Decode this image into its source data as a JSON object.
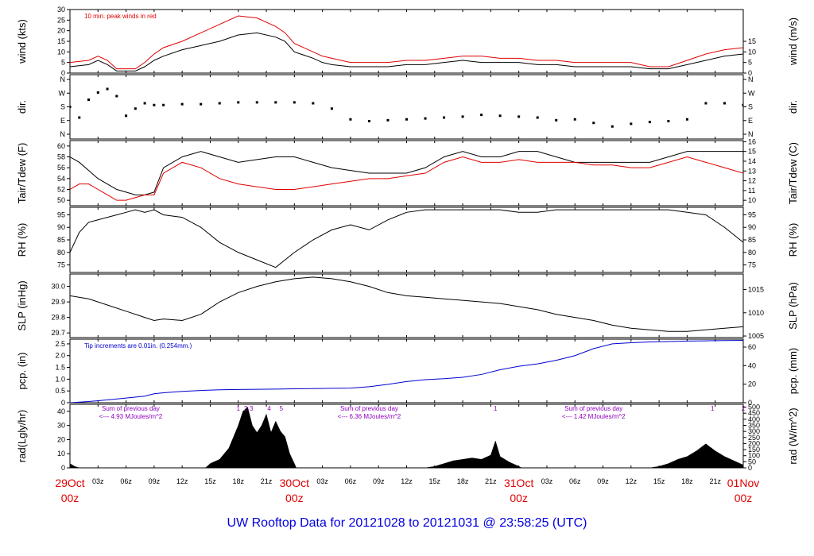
{
  "title": "UW Rooftop Data for 20121028  to  20121031 @ 23:58:25  (UTC)",
  "colors": {
    "wind": "#000000",
    "gust": "#e00000",
    "dewpoint": "#e00000",
    "precip": "#0000d0",
    "annotation": "#9000c0",
    "date": "#e00000",
    "title": "#0000e0"
  },
  "x_axis": {
    "ticks": [
      "29Oct 00z",
      "03z",
      "06z",
      "09z",
      "12z",
      "15z",
      "18z",
      "21z",
      "30Oct 00z",
      "03z",
      "06z",
      "09z",
      "12z",
      "15z",
      "18z",
      "21z",
      "31Oct 00z",
      "03z",
      "06z",
      "09z",
      "12z",
      "15z",
      "18z",
      "21z",
      "01Nov 00z"
    ],
    "hour_labels": [
      "03z",
      "06z",
      "09z",
      "12z",
      "15z",
      "18z",
      "21z",
      "03z",
      "06z",
      "09z",
      "12z",
      "15z",
      "18z",
      "21z",
      "03z",
      "06z",
      "09z",
      "12z",
      "15z",
      "18z",
      "21z"
    ],
    "day_labels": [
      {
        "date": "29Oct",
        "hour": "00z"
      },
      {
        "date": "30Oct",
        "hour": "00z"
      },
      {
        "date": "31Oct",
        "hour": "00z"
      },
      {
        "date": "01Nov",
        "hour": "00z"
      }
    ]
  },
  "chart_data": [
    {
      "type": "line",
      "ylabel_left": "wind (kts)",
      "ylabel_right": "wind (m/s)",
      "note": "10 min. peak winds in red",
      "ylim": [
        0,
        30
      ],
      "y_ticks_left": [
        0,
        5,
        10,
        15,
        20,
        25,
        30
      ],
      "y_ticks_right_values": [
        0,
        5,
        10,
        15
      ],
      "y_ticks_right_labels": [
        "0",
        "5",
        "10",
        "15"
      ],
      "right_scale": 1.944,
      "series": [
        {
          "name": "wind speed",
          "color": "#000000",
          "x_hours": [
            0,
            2,
            3,
            4,
            5,
            6,
            7,
            8,
            9,
            10,
            12,
            14,
            16,
            18,
            20,
            22,
            23,
            24,
            26,
            27,
            28,
            30,
            32,
            34,
            36,
            38,
            40,
            42,
            44,
            46,
            48,
            50,
            52,
            54,
            56,
            58,
            60,
            62,
            64,
            66,
            68,
            70,
            72
          ],
          "y": [
            3,
            4,
            6,
            4,
            1,
            1,
            1,
            3,
            6,
            8,
            11,
            13,
            15,
            18,
            19,
            17,
            15,
            10,
            7,
            5,
            4,
            3,
            3,
            3,
            4,
            4,
            5,
            6,
            5,
            5,
            5,
            4,
            4,
            3,
            3,
            3,
            3,
            2,
            2,
            4,
            6,
            8,
            9
          ]
        },
        {
          "name": "10 min peak",
          "color": "#e00000",
          "x_hours": [
            0,
            2,
            3,
            4,
            5,
            6,
            7,
            8,
            9,
            10,
            12,
            14,
            16,
            18,
            20,
            22,
            23,
            24,
            26,
            27,
            28,
            30,
            32,
            34,
            36,
            38,
            40,
            42,
            44,
            46,
            48,
            50,
            52,
            54,
            56,
            58,
            60,
            62,
            64,
            66,
            68,
            70,
            72
          ],
          "y": [
            5,
            6,
            8,
            6,
            2,
            2,
            2,
            5,
            9,
            12,
            15,
            19,
            23,
            27,
            26,
            22,
            19,
            14,
            10,
            8,
            7,
            5,
            5,
            5,
            6,
            6,
            7,
            8,
            8,
            7,
            7,
            6,
            6,
            5,
            5,
            5,
            5,
            3,
            3,
            6,
            9,
            11,
            12
          ]
        }
      ]
    },
    {
      "type": "scatter",
      "ylabel_left": "dir.",
      "ylabel_right": "dir.",
      "y_categories": [
        "N",
        "W",
        "S",
        "E",
        "N"
      ],
      "ylim": [
        0,
        360
      ],
      "series": [
        {
          "name": "wind direction",
          "color": "#000000",
          "x_hours": [
            0,
            1,
            2,
            3,
            4,
            5,
            6,
            7,
            8,
            9,
            10,
            12,
            14,
            16,
            18,
            20,
            22,
            24,
            26,
            28,
            30,
            32,
            34,
            36,
            38,
            40,
            42,
            44,
            46,
            48,
            50,
            52,
            54,
            56,
            58,
            60,
            62,
            64,
            66,
            68,
            70,
            72
          ],
          "y": [
            180,
            120,
            220,
            260,
            280,
            240,
            130,
            170,
            200,
            190,
            190,
            195,
            195,
            200,
            205,
            205,
            205,
            205,
            200,
            170,
            110,
            100,
            105,
            110,
            115,
            120,
            125,
            135,
            130,
            125,
            120,
            105,
            110,
            90,
            70,
            85,
            95,
            100,
            110,
            200,
            200,
            190
          ]
        }
      ]
    },
    {
      "type": "line",
      "ylabel_left": "Tair/Tdew (F)",
      "ylabel_right": "Tair/Tdew (C)",
      "ylim": [
        49,
        61
      ],
      "y_ticks_left": [
        50,
        52,
        54,
        56,
        58,
        60
      ],
      "y_ticks_right_values": [
        50,
        51.8,
        53.6,
        55.4,
        57.2,
        59,
        60.8
      ],
      "y_ticks_right_labels": [
        "10",
        "11",
        "12",
        "13",
        "14",
        "15",
        "16"
      ],
      "series": [
        {
          "name": "Tair",
          "color": "#000000",
          "x_hours": [
            0,
            1,
            2,
            3,
            4,
            5,
            6,
            7,
            8,
            9,
            10,
            12,
            14,
            16,
            18,
            20,
            22,
            24,
            26,
            28,
            30,
            32,
            34,
            36,
            38,
            40,
            42,
            44,
            46,
            48,
            50,
            52,
            54,
            56,
            58,
            60,
            62,
            64,
            66,
            68,
            70,
            72
          ],
          "y": [
            58,
            57,
            55.5,
            54,
            53,
            52,
            51.5,
            51,
            51,
            51.5,
            56,
            58,
            59,
            58,
            57,
            57.5,
            58,
            58,
            57,
            56,
            55.5,
            55,
            55,
            55,
            56,
            58,
            59,
            58,
            58,
            59,
            59,
            58,
            57,
            57,
            57,
            57,
            57,
            58,
            59,
            59,
            59,
            59
          ]
        },
        {
          "name": "Tdew",
          "color": "#e00000",
          "x_hours": [
            0,
            1,
            2,
            3,
            4,
            5,
            6,
            7,
            8,
            9,
            10,
            12,
            14,
            16,
            18,
            20,
            22,
            24,
            26,
            28,
            30,
            32,
            34,
            36,
            38,
            40,
            42,
            44,
            46,
            48,
            50,
            52,
            54,
            56,
            58,
            60,
            62,
            64,
            66,
            68,
            70,
            72
          ],
          "y": [
            52,
            53,
            53,
            52,
            51,
            50,
            50,
            50.5,
            51,
            51,
            55,
            57,
            56,
            54,
            53,
            52.5,
            52,
            52,
            52.5,
            53,
            53.5,
            54,
            54,
            54.5,
            55,
            57,
            58,
            57,
            57,
            57.5,
            57,
            57,
            57,
            56.5,
            56.5,
            56,
            56,
            57,
            58,
            57,
            56,
            55
          ]
        }
      ]
    },
    {
      "type": "line",
      "ylabel_left": "RH (%)",
      "ylabel_right": "RH (%)",
      "ylim": [
        72,
        98
      ],
      "y_ticks_left": [
        75,
        80,
        85,
        90,
        95
      ],
      "y_ticks_right_values": [
        75,
        80,
        85,
        90,
        95
      ],
      "y_ticks_right_labels": [
        "75",
        "80",
        "85",
        "90",
        "95"
      ],
      "series": [
        {
          "name": "RH",
          "color": "#000000",
          "x_hours": [
            0,
            1,
            2,
            3,
            4,
            5,
            6,
            7,
            8,
            9,
            10,
            12,
            14,
            16,
            18,
            20,
            22,
            24,
            26,
            28,
            30,
            32,
            34,
            36,
            38,
            40,
            42,
            44,
            46,
            48,
            50,
            52,
            54,
            56,
            58,
            60,
            62,
            64,
            66,
            68,
            70,
            72
          ],
          "y": [
            80,
            88,
            92,
            93,
            94,
            95,
            96,
            97,
            96,
            97,
            95,
            94,
            90,
            84,
            80,
            77,
            74,
            80,
            85,
            89,
            91,
            89,
            93,
            96,
            97,
            97,
            97,
            97,
            97,
            96,
            96,
            97,
            97,
            97,
            97,
            97,
            97,
            97,
            96,
            95,
            90,
            84
          ]
        }
      ]
    },
    {
      "type": "line",
      "ylabel_left": "SLP (inHg)",
      "ylabel_right": "SLP (hPa)",
      "ylim": [
        29.67,
        30.08
      ],
      "y_ticks_left": [
        29.7,
        29.8,
        29.9,
        30.0
      ],
      "y_ticks_left_labels": [
        "29.7",
        "29.8",
        "29.9",
        "30.0"
      ],
      "y_ticks_right_values": [
        29.68,
        29.83,
        29.98
      ],
      "y_ticks_right_labels": [
        "1005",
        "1010",
        "1015"
      ],
      "series": [
        {
          "name": "SLP",
          "color": "#000000",
          "x_hours": [
            0,
            2,
            4,
            6,
            8,
            9,
            10,
            12,
            14,
            16,
            18,
            20,
            22,
            24,
            26,
            28,
            30,
            32,
            34,
            36,
            38,
            40,
            42,
            44,
            46,
            48,
            50,
            52,
            54,
            56,
            58,
            60,
            62,
            64,
            66,
            68,
            70,
            72
          ],
          "y": [
            29.94,
            29.92,
            29.88,
            29.84,
            29.8,
            29.78,
            29.79,
            29.78,
            29.82,
            29.9,
            29.96,
            30.0,
            30.03,
            30.05,
            30.06,
            30.05,
            30.03,
            30.0,
            29.96,
            29.94,
            29.93,
            29.92,
            29.91,
            29.9,
            29.89,
            29.87,
            29.85,
            29.82,
            29.8,
            29.78,
            29.75,
            29.73,
            29.72,
            29.71,
            29.71,
            29.72,
            29.73,
            29.74
          ]
        }
      ]
    },
    {
      "type": "line",
      "ylabel_left": "pcp. (in)",
      "ylabel_right": "pcp. (mm)",
      "note": "Tip increments are 0.01in. (0.254mm.)",
      "ylim": [
        0,
        2.7
      ],
      "y_ticks_left": [
        0,
        0.5,
        1.0,
        1.5,
        2.0,
        2.5
      ],
      "y_ticks_left_labels": [
        "0",
        "0.5",
        "1.0",
        "1.5",
        "2.0",
        "2.5"
      ],
      "y_ticks_right_values": [
        0,
        0.787,
        1.575,
        2.362
      ],
      "y_ticks_right_labels": [
        "0",
        "20",
        "40",
        "60"
      ],
      "series": [
        {
          "name": "precip",
          "color": "#0000d0",
          "x_hours": [
            0,
            2,
            4,
            6,
            8,
            9,
            10,
            12,
            14,
            16,
            18,
            20,
            22,
            24,
            26,
            28,
            30,
            32,
            34,
            36,
            38,
            40,
            42,
            44,
            46,
            48,
            50,
            52,
            54,
            56,
            58,
            60,
            62,
            64,
            66,
            68,
            70,
            72
          ],
          "y": [
            0,
            0.05,
            0.12,
            0.2,
            0.28,
            0.38,
            0.42,
            0.48,
            0.52,
            0.55,
            0.56,
            0.57,
            0.58,
            0.59,
            0.6,
            0.61,
            0.62,
            0.68,
            0.78,
            0.9,
            0.98,
            1.02,
            1.08,
            1.2,
            1.4,
            1.55,
            1.65,
            1.8,
            2.0,
            2.3,
            2.5,
            2.55,
            2.58,
            2.6,
            2.62,
            2.63,
            2.64,
            2.65
          ]
        }
      ]
    },
    {
      "type": "area",
      "ylabel_left": "rad(Lgly/hr)",
      "ylabel_right": "rad (W/m^2)",
      "ylim": [
        0,
        45
      ],
      "y_ticks_left": [
        0,
        10,
        20,
        30,
        40
      ],
      "y_ticks_right_values": [
        0,
        4.3,
        8.6,
        12.9,
        17.2,
        21.5,
        25.8,
        30.1,
        34.4,
        38.7,
        43.0
      ],
      "y_ticks_right_labels": [
        "0",
        "50",
        "100",
        "150",
        "200",
        "250",
        "300",
        "350",
        "400",
        "450",
        "500"
      ],
      "annotations": [
        {
          "text": "Sum of previous day",
          "x_hour": 6.5,
          "line": 0
        },
        {
          "text": "<--- 4.93 MJoules/m^2",
          "x_hour": 6.5,
          "line": 1
        },
        {
          "text": "Sum of previous day",
          "x_hour": 32,
          "line": 0
        },
        {
          "text": "<--- 6.36 MJoules/m^2",
          "x_hour": 32,
          "line": 1
        },
        {
          "text": "Sum of previous day",
          "x_hour": 56,
          "line": 0
        },
        {
          "text": "<--- 1.42 MJoules/m^2",
          "x_hour": 56,
          "line": 1
        }
      ],
      "event_labels": [
        {
          "text": "1",
          "x_hour": 18
        },
        {
          "text": "2",
          "x_hour": 18.8
        },
        {
          "text": "3",
          "x_hour": 19.4
        },
        {
          "text": "4",
          "x_hour": 21.3
        },
        {
          "text": "5",
          "x_hour": 22.6
        },
        {
          "text": "1",
          "x_hour": 45.5
        },
        {
          "text": "1",
          "x_hour": 68.7
        },
        {
          "text": "2",
          "x_hour": 72
        }
      ],
      "series": [
        {
          "name": "solar radiation",
          "color": "#000000",
          "x_hours": [
            0,
            0.5,
            1,
            14.5,
            15,
            16,
            17,
            18,
            18.5,
            19,
            19.5,
            20,
            20.5,
            21,
            21.5,
            22,
            22.5,
            23,
            23.5,
            24,
            24.2,
            38,
            39,
            40,
            41,
            42,
            43,
            44,
            45,
            45.5,
            46,
            47,
            48,
            48.3,
            62,
            63,
            64,
            65,
            66,
            67,
            68,
            69,
            70,
            71,
            72
          ],
          "y": [
            3,
            1,
            0,
            0,
            3,
            6,
            14,
            30,
            40,
            43,
            30,
            25,
            30,
            38,
            25,
            33,
            26,
            22,
            10,
            3,
            0,
            0,
            1,
            3,
            5,
            6,
            7,
            6,
            9,
            19,
            8,
            4,
            1,
            0,
            0,
            1,
            3,
            6,
            8,
            12,
            17,
            12,
            8,
            5,
            2
          ]
        }
      ]
    }
  ]
}
